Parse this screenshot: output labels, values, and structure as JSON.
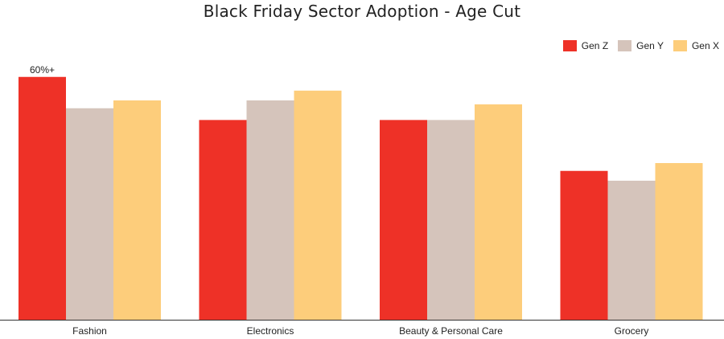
{
  "chart_data": {
    "type": "bar",
    "title": "Black Friday Sector Adoption - Age Cut",
    "categories": [
      "Fashion",
      "Electronics",
      "Beauty & Personal Care",
      "Grocery"
    ],
    "series": [
      {
        "name": "Gen Z",
        "color": "#ee3127",
        "values": [
          62,
          51,
          51,
          38
        ]
      },
      {
        "name": "Gen Y",
        "color": "#d5c4bb",
        "values": [
          54,
          56,
          51,
          35.5
        ]
      },
      {
        "name": "Gen X",
        "color": "#fdcd7b",
        "values": [
          56,
          58.5,
          55,
          40
        ]
      }
    ],
    "annotations": [
      {
        "series": "Gen Z",
        "category": "Fashion",
        "text": "60%+"
      }
    ],
    "xlabel": "",
    "ylabel": "",
    "ylim": [
      0,
      80
    ],
    "grid": false,
    "legend": "top-right"
  }
}
